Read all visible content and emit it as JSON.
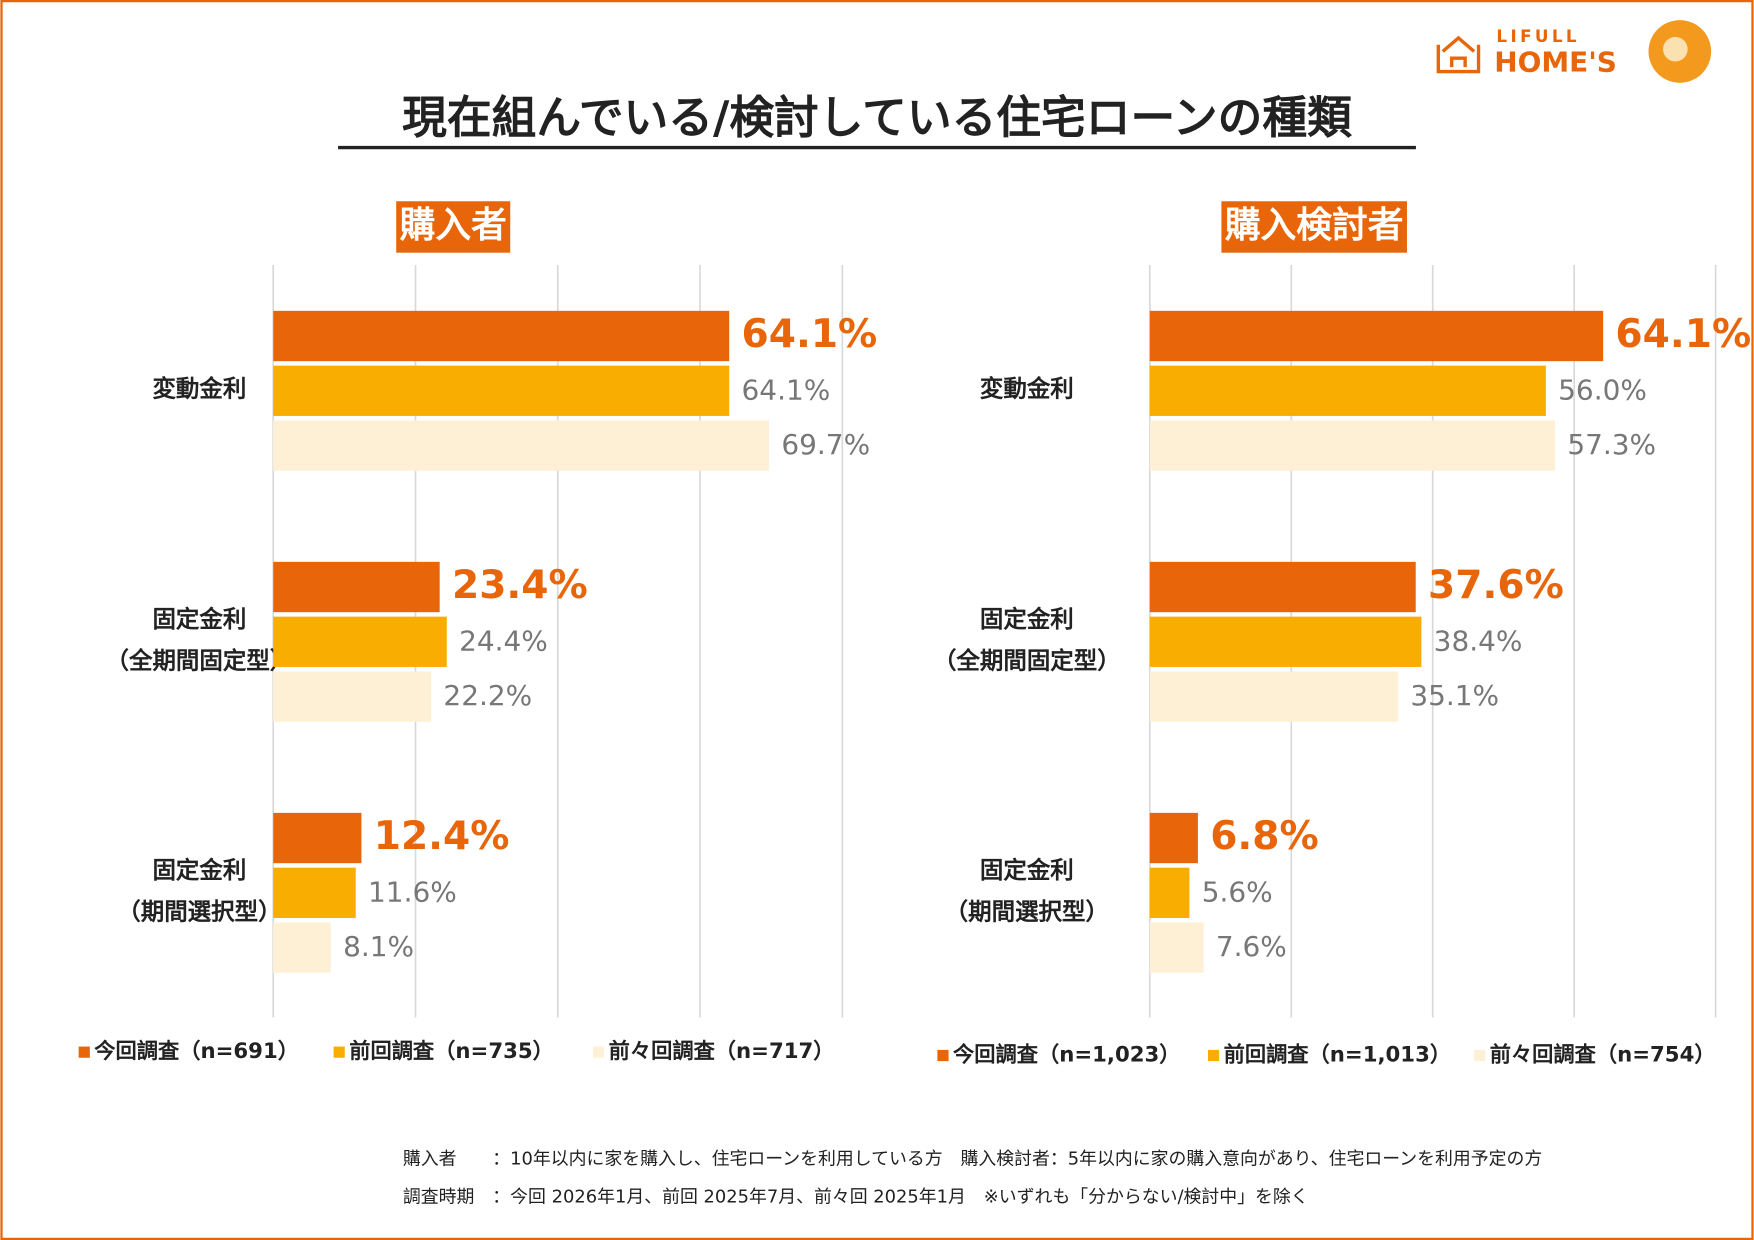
{
  "title": "現在組んでいる/検討している住宅ローンの種類",
  "logo": {
    "top": "LIFULL",
    "bottom": "HOME'S"
  },
  "chart_data": [
    {
      "type": "bar",
      "orientation": "horizontal",
      "subtitle": "購入者",
      "categories": [
        [
          "変動金利"
        ],
        [
          "固定金利",
          "（全期間固定型）"
        ],
        [
          "固定金利",
          "（期間選択型）"
        ]
      ],
      "xlim": [
        0,
        80
      ],
      "xticks": [
        0,
        20,
        40,
        60,
        80
      ],
      "grid": true,
      "series": [
        {
          "name": "今回調査（n=691）",
          "color": "#e8650a",
          "values": [
            64.1,
            23.4,
            12.4
          ],
          "value_labels": [
            "64.1%",
            "23.4%",
            "12.4%"
          ]
        },
        {
          "name": "前回調査（n=735）",
          "color": "#f9ad00",
          "values": [
            64.1,
            24.4,
            11.6
          ],
          "value_labels": [
            "64.1%",
            "24.4%",
            "11.6%"
          ]
        },
        {
          "name": "前々回調査（n=717）",
          "color": "#fdf0d5",
          "values": [
            69.7,
            22.2,
            8.1
          ],
          "value_labels": [
            "69.7%",
            "22.2%",
            "8.1%"
          ]
        }
      ]
    },
    {
      "type": "bar",
      "orientation": "horizontal",
      "subtitle": "購入検討者",
      "categories": [
        [
          "変動金利"
        ],
        [
          "固定金利",
          "（全期間固定型）"
        ],
        [
          "固定金利",
          "（期間選択型）"
        ]
      ],
      "xlim": [
        0,
        80
      ],
      "xticks": [
        0,
        20,
        40,
        60,
        80
      ],
      "grid": true,
      "series": [
        {
          "name": "今回調査（n=1,023）",
          "color": "#e8650a",
          "values": [
            64.1,
            37.6,
            6.8
          ],
          "value_labels": [
            "64.1%",
            "37.6%",
            "6.8%"
          ]
        },
        {
          "name": "前回調査（n=1,013）",
          "color": "#f9ad00",
          "values": [
            56.0,
            38.4,
            5.6
          ],
          "value_labels": [
            "56.0%",
            "38.4%",
            "5.6%"
          ]
        },
        {
          "name": "前々回調査（n=754）",
          "color": "#fdf0d5",
          "values": [
            57.3,
            35.1,
            7.6
          ],
          "value_labels": [
            "57.3%",
            "35.1%",
            "7.6%"
          ]
        }
      ]
    }
  ],
  "notes": [
    "購入者　　：10年以内に家を購入し、住宅ローンを利用している方　購入検討者：5年以内に家の購入意向があり、住宅ローンを利用予定の方",
    "調査時期　：今回 2026年1月、前回 2025年7月、前々回 2025年1月　※いずれも「分からない/検討中」を除く"
  ]
}
